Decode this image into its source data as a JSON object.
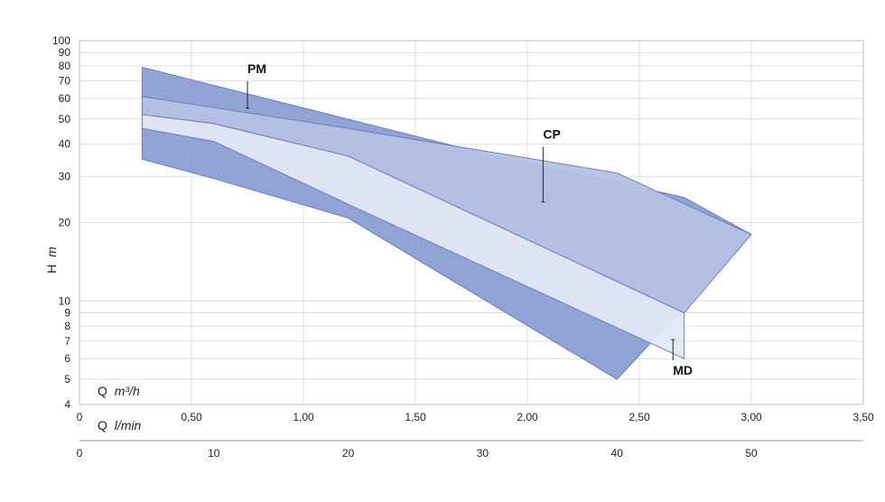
{
  "chart_data": {
    "type": "area",
    "y_scale": "log",
    "ylim": [
      4,
      100
    ],
    "xlim": [
      0,
      3.5
    ],
    "grid": true,
    "ylabel": {
      "main": "H",
      "unit": "m"
    },
    "x_primary_label": {
      "main": "Q",
      "unit": "m³/h"
    },
    "x_secondary_label": {
      "main": "Q",
      "unit": "l/min"
    },
    "y_ticks": [
      {
        "v": 4,
        "label": "4"
      },
      {
        "v": 5,
        "label": "5"
      },
      {
        "v": 6,
        "label": "6"
      },
      {
        "v": 7,
        "label": "7"
      },
      {
        "v": 8,
        "label": "8"
      },
      {
        "v": 9,
        "label": "9"
      },
      {
        "v": 10,
        "label": "10"
      },
      {
        "v": 20,
        "label": "20"
      },
      {
        "v": 30,
        "label": "30"
      },
      {
        "v": 40,
        "label": "40"
      },
      {
        "v": 50,
        "label": "50"
      },
      {
        "v": 60,
        "label": "60"
      },
      {
        "v": 70,
        "label": "70"
      },
      {
        "v": 80,
        "label": "80"
      },
      {
        "v": 90,
        "label": "90"
      },
      {
        "v": 100,
        "label": "100"
      }
    ],
    "x_ticks": [
      {
        "v": 0,
        "label": "0"
      },
      {
        "v": 0.5,
        "label": "0,50"
      },
      {
        "v": 1.0,
        "label": "1,00"
      },
      {
        "v": 1.5,
        "label": "1,50"
      },
      {
        "v": 2.0,
        "label": "2,00"
      },
      {
        "v": 2.5,
        "label": "2,50"
      },
      {
        "v": 3.0,
        "label": "3,00"
      },
      {
        "v": 3.5,
        "label": "3,50"
      }
    ],
    "x2_ticks": [
      {
        "v": 0,
        "label": "0"
      },
      {
        "v": 10,
        "label": "10"
      },
      {
        "v": 20,
        "label": "20"
      },
      {
        "v": 30,
        "label": "30"
      },
      {
        "v": 40,
        "label": "40"
      },
      {
        "v": 50,
        "label": "50"
      }
    ],
    "series": [
      {
        "name": "PM",
        "color": "#8b9ed2",
        "polygon": [
          [
            0.28,
            79
          ],
          [
            1.8,
            37
          ],
          [
            2.7,
            25
          ],
          [
            3.0,
            18
          ],
          [
            2.4,
            5
          ],
          [
            1.2,
            20.8
          ],
          [
            0.6,
            29.5
          ],
          [
            0.28,
            35
          ]
        ]
      },
      {
        "name": "CP",
        "color": "#b4c1e3",
        "polygon": [
          [
            0.28,
            61
          ],
          [
            1.2,
            46
          ],
          [
            2.4,
            31
          ],
          [
            3.0,
            18
          ],
          [
            2.7,
            9
          ],
          [
            1.2,
            36
          ],
          [
            0.6,
            48
          ],
          [
            0.28,
            52
          ]
        ]
      },
      {
        "name": "MD",
        "color": "#e3e8f5",
        "polygon": [
          [
            0.28,
            52
          ],
          [
            0.6,
            48
          ],
          [
            1.2,
            36
          ],
          [
            2.7,
            9
          ],
          [
            2.7,
            6
          ],
          [
            1.2,
            23.5
          ],
          [
            0.6,
            41
          ],
          [
            0.28,
            46
          ]
        ]
      }
    ],
    "annotations": [
      {
        "text": "PM",
        "point": [
          0.75,
          55
        ],
        "label_at": [
          0.75,
          75
        ]
      },
      {
        "text": "CP",
        "point": [
          2.07,
          24
        ],
        "label_at": [
          2.07,
          42
        ]
      },
      {
        "text": "MD",
        "point": [
          2.65,
          7.1
        ],
        "label_at": [
          2.65,
          5.2
        ]
      }
    ]
  }
}
